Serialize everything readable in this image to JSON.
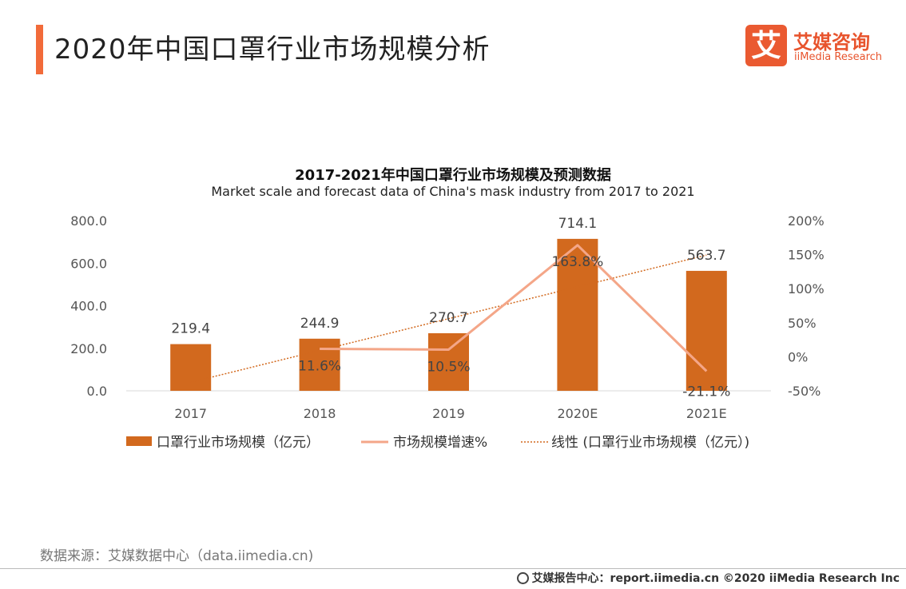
{
  "header": {
    "title": "2020年中国口罩行业市场规模分析"
  },
  "logo": {
    "mark": "艾",
    "name_cn": "艾媒咨询",
    "name_en": "iiMedia Research"
  },
  "chart_data": {
    "type": "bar",
    "title": "2017-2021年中国口罩行业市场规模及预测数据",
    "subtitle": "Market scale and forecast data of China's mask industry from 2017 to 2021",
    "categories": [
      "2017",
      "2018",
      "2019",
      "2020E",
      "2021E"
    ],
    "series": [
      {
        "name": "口罩行业市场规模（亿元）",
        "type": "bar",
        "axis": "left",
        "values": [
          219.4,
          244.9,
          270.7,
          714.1,
          563.7
        ],
        "labels": [
          "219.4",
          "244.9",
          "270.7",
          "714.1",
          "563.7"
        ]
      },
      {
        "name": "市场规模增速%",
        "type": "line",
        "axis": "right",
        "values": [
          null,
          11.6,
          10.5,
          163.8,
          -21.1
        ],
        "labels": [
          "",
          "11.6%",
          "10.5%",
          "163.8%",
          "-21.1%"
        ]
      },
      {
        "name": "线性 (口罩行业市场规模（亿元）)",
        "type": "trendline",
        "axis": "left",
        "values": [
          40,
          189.5,
          339,
          488.5,
          638
        ]
      }
    ],
    "y_left": {
      "min": 0,
      "max": 800,
      "ticks": [
        "0.0",
        "200.0",
        "400.0",
        "600.0",
        "800.0"
      ],
      "tick_values": [
        0,
        200,
        400,
        600,
        800
      ]
    },
    "y_right": {
      "min": -50,
      "max": 200,
      "ticks": [
        "-50%",
        "0%",
        "50%",
        "100%",
        "150%",
        "200%"
      ],
      "tick_values": [
        -50,
        0,
        50,
        100,
        150,
        200
      ]
    },
    "legend_position": "bottom",
    "colors": {
      "bar": "#d2691e",
      "line": "#f4a688",
      "trend": "#d2691e",
      "axis": "#d9d9d9",
      "label": "#444444"
    }
  },
  "source": "数据来源：艾媒数据中心（data.iimedia.cn)",
  "footer": "艾媒报告中心：report.iimedia.cn  ©2020  iiMedia Research  Inc"
}
